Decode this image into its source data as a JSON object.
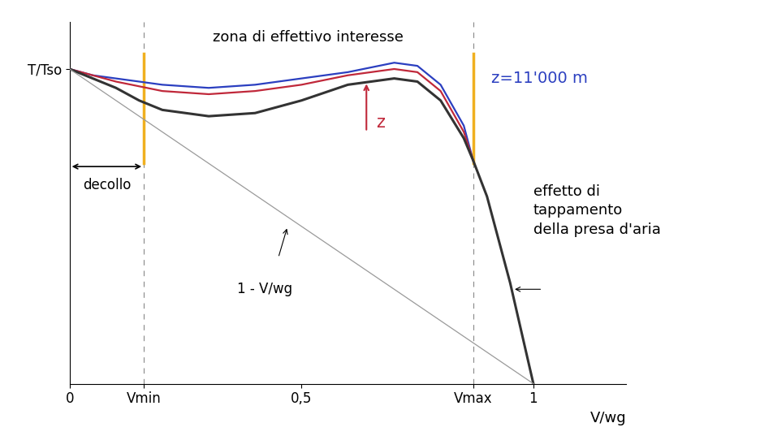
{
  "chart_data": {
    "type": "line",
    "x_label": "V/wg",
    "x": [
      0,
      0.05,
      0.1,
      0.15,
      0.2,
      0.3,
      0.4,
      0.5,
      0.6,
      0.7,
      0.75,
      0.8,
      0.85,
      0.87,
      0.9,
      0.95,
      1
    ],
    "series": [
      {
        "color": "#2b3fc0",
        "values": [
          1.0,
          0.98,
          0.97,
          0.96,
          0.95,
          0.94,
          0.95,
          0.97,
          0.99,
          1.02,
          1.01,
          0.95,
          0.82,
          0.71,
          null,
          null,
          null
        ]
      },
      {
        "color": "#c0283a",
        "values": [
          1.0,
          0.98,
          0.96,
          0.945,
          0.93,
          0.92,
          0.93,
          0.95,
          0.98,
          1.0,
          0.99,
          0.93,
          0.8,
          0.71,
          null,
          null,
          null
        ]
      },
      {
        "color": "#333333",
        "values": [
          1.0,
          0.97,
          0.94,
          0.9,
          0.87,
          0.85,
          0.86,
          0.9,
          0.95,
          0.97,
          0.96,
          0.9,
          0.78,
          0.71,
          0.595,
          0.32,
          0.0
        ]
      },
      {
        "color": "#9a9a9a",
        "x": [
          0,
          1
        ],
        "values": [
          1,
          0
        ]
      }
    ],
    "xlim": [
      0,
      1.2
    ],
    "ylim": [
      0,
      1.15
    ],
    "xticks": [
      0,
      {
        "value": 0.16,
        "label": "Vmin"
      },
      {
        "value": 0.5,
        "label": "0,5"
      },
      {
        "value": 0.87,
        "label": "Vmax"
      },
      1
    ],
    "yticks": [
      {
        "value": 1,
        "label": "T/Tso"
      }
    ],
    "annotations": [
      "zona di effettivo interesse",
      "z=11'000 m",
      "z",
      "decollo",
      "1 - V/wg",
      "effetto di\ntappamento\ndella presa d'aria"
    ]
  }
}
